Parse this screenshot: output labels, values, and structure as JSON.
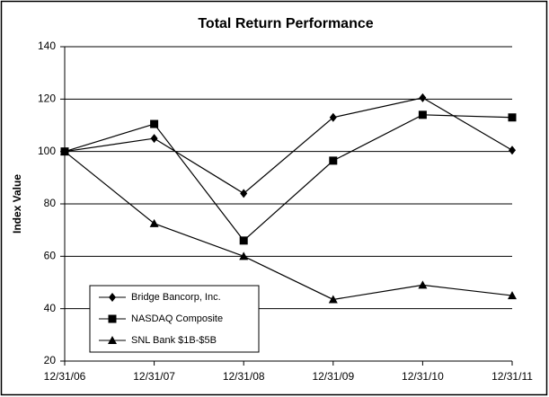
{
  "chart_data": {
    "type": "line",
    "title": "Total Return Performance",
    "y_label": "Index Value",
    "categories": [
      "12/31/06",
      "12/31/07",
      "12/31/08",
      "12/31/09",
      "12/31/10",
      "12/31/11"
    ],
    "series": [
      {
        "name": "Bridge Bancorp, Inc.",
        "color": "#000000",
        "marker": "diamond",
        "values": [
          100,
          105,
          84,
          113,
          120.5,
          100.5
        ]
      },
      {
        "name": "NASDAQ Composite",
        "color": "#000000",
        "marker": "square",
        "values": [
          100,
          110.5,
          66,
          96.5,
          114,
          113
        ]
      },
      {
        "name": "SNL Bank $1B-$5B",
        "color": "#000000",
        "marker": "triangle",
        "values": [
          100,
          72.5,
          60,
          43.5,
          49,
          45
        ]
      }
    ],
    "ylim": [
      20,
      140
    ],
    "yticks": [
      20,
      40,
      60,
      80,
      100,
      120,
      140
    ],
    "grid": true,
    "legend": "lower left"
  }
}
